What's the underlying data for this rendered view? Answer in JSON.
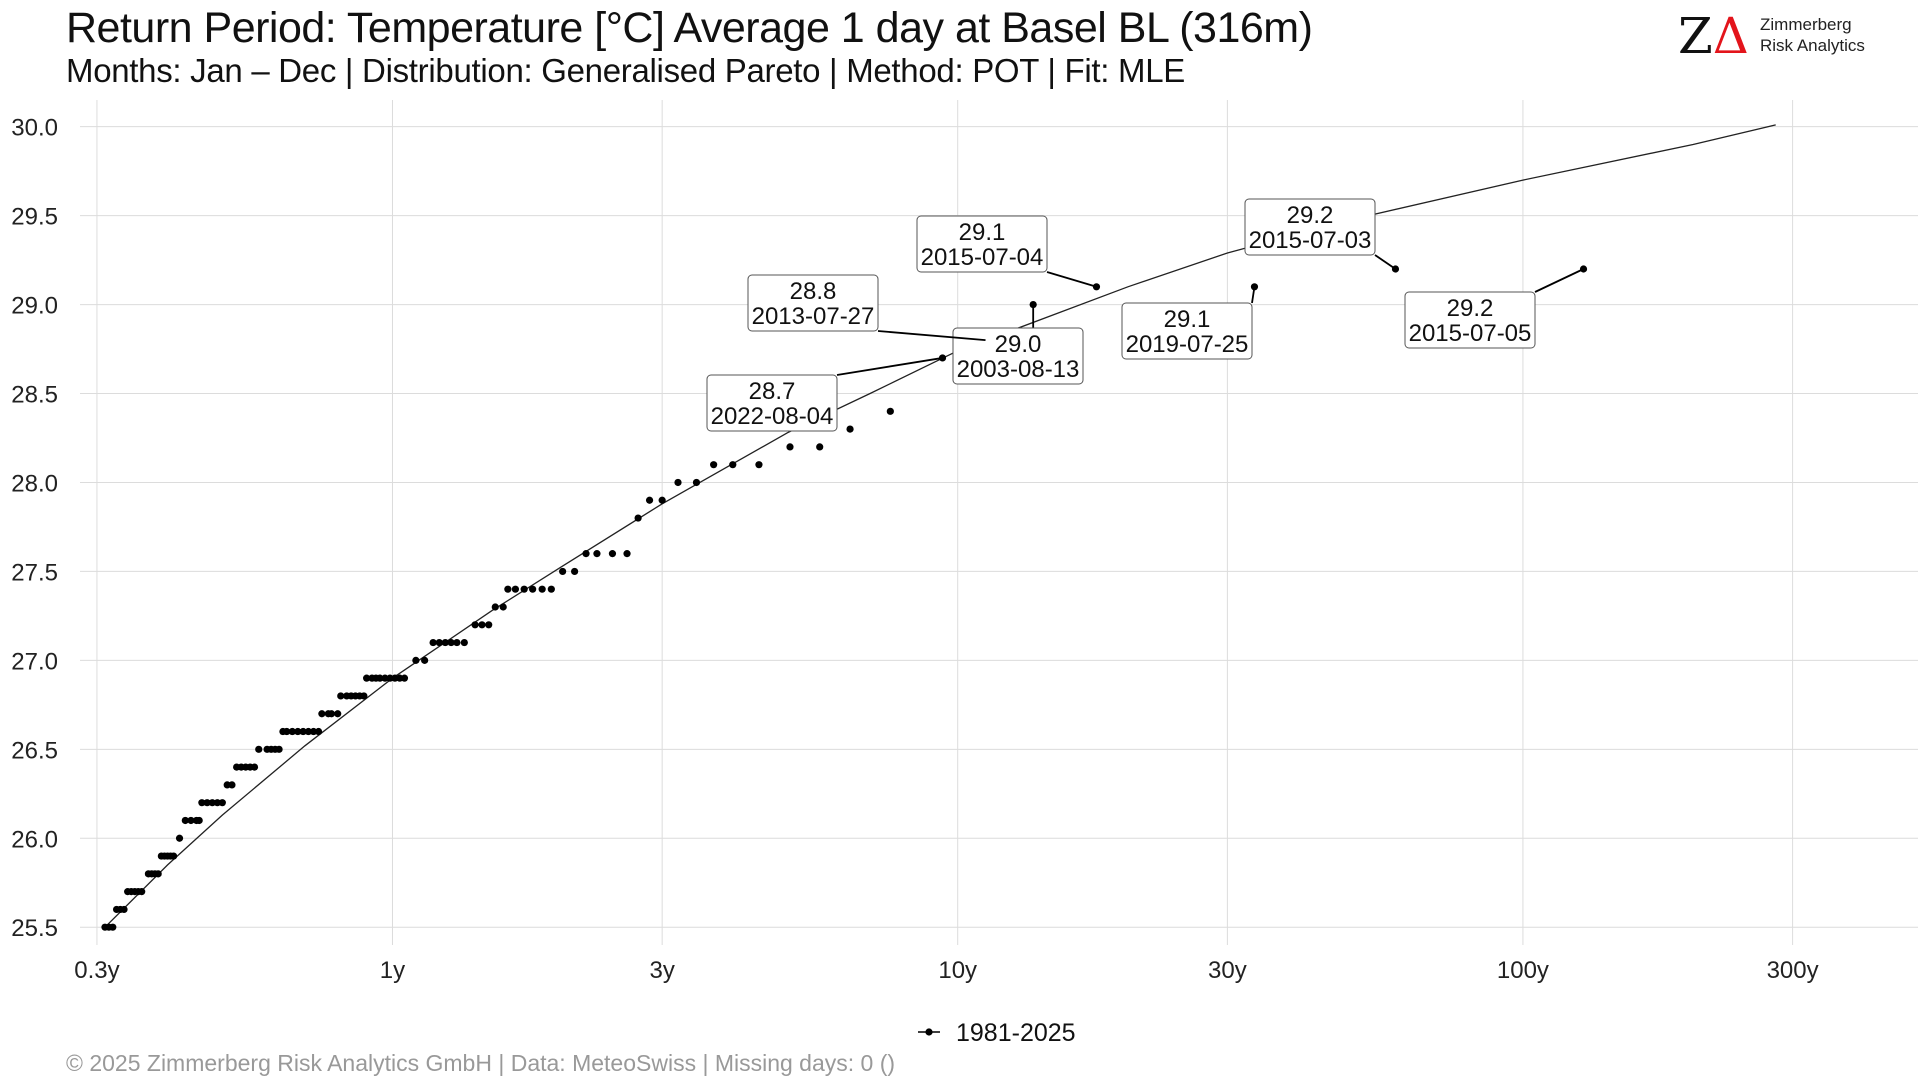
{
  "header": {
    "title": "Return Period: Temperature [°C] Average 1 day at Basel  BL (316m)",
    "subtitle": "Months: Jan – Dec | Distribution: Generalised Pareto | Method: POT | Fit: MLE"
  },
  "logo": {
    "mark_letter": "Z",
    "mark_delta": "Δ",
    "line1": "Zimmerberg",
    "line2": "Risk Analytics",
    "accent_color": "#e3141b"
  },
  "footer": {
    "text": "©  2025 Zimmerberg Risk Analytics GmbH | Data: MeteoSwiss | Missing days: 0 ()"
  },
  "chart_data": {
    "type": "scatter",
    "x_scale": "log",
    "x_unit": "return period (years)",
    "xlim": [
      0.28,
      500
    ],
    "ylim": [
      25.4,
      30.15
    ],
    "x_ticks": [
      {
        "value": 0.3,
        "label": "0.3y"
      },
      {
        "value": 1,
        "label": "1y"
      },
      {
        "value": 3,
        "label": "3y"
      },
      {
        "value": 10,
        "label": "10y"
      },
      {
        "value": 30,
        "label": "30y"
      },
      {
        "value": 100,
        "label": "100y"
      },
      {
        "value": 300,
        "label": "300y"
      }
    ],
    "y_ticks": [
      {
        "value": 25.5,
        "label": "25.5"
      },
      {
        "value": 26.0,
        "label": "26.0"
      },
      {
        "value": 26.5,
        "label": "26.5"
      },
      {
        "value": 27.0,
        "label": "27.0"
      },
      {
        "value": 27.5,
        "label": "27.5"
      },
      {
        "value": 28.0,
        "label": "28.0"
      },
      {
        "value": 28.5,
        "label": "28.5"
      },
      {
        "value": 29.0,
        "label": "29.0"
      },
      {
        "value": 29.5,
        "label": "29.5"
      },
      {
        "value": 30.0,
        "label": "30.0"
      }
    ],
    "grid": true,
    "legend": {
      "position": "bottom",
      "label": "1981-2025"
    },
    "series": [
      {
        "name": "1981-2025",
        "color": "#000000",
        "points": [
          {
            "x": 0.31,
            "y": 25.5
          },
          {
            "x": 0.315,
            "y": 25.5
          },
          {
            "x": 0.32,
            "y": 25.5
          },
          {
            "x": 0.325,
            "y": 25.6
          },
          {
            "x": 0.33,
            "y": 25.6
          },
          {
            "x": 0.335,
            "y": 25.6
          },
          {
            "x": 0.34,
            "y": 25.7
          },
          {
            "x": 0.345,
            "y": 25.7
          },
          {
            "x": 0.35,
            "y": 25.7
          },
          {
            "x": 0.355,
            "y": 25.7
          },
          {
            "x": 0.36,
            "y": 25.7
          },
          {
            "x": 0.37,
            "y": 25.8
          },
          {
            "x": 0.375,
            "y": 25.8
          },
          {
            "x": 0.38,
            "y": 25.8
          },
          {
            "x": 0.385,
            "y": 25.8
          },
          {
            "x": 0.39,
            "y": 25.9
          },
          {
            "x": 0.395,
            "y": 25.9
          },
          {
            "x": 0.4,
            "y": 25.9
          },
          {
            "x": 0.405,
            "y": 25.9
          },
          {
            "x": 0.41,
            "y": 25.9
          },
          {
            "x": 0.42,
            "y": 26.0
          },
          {
            "x": 0.43,
            "y": 26.1
          },
          {
            "x": 0.44,
            "y": 26.1
          },
          {
            "x": 0.45,
            "y": 26.1
          },
          {
            "x": 0.455,
            "y": 26.1
          },
          {
            "x": 0.46,
            "y": 26.2
          },
          {
            "x": 0.47,
            "y": 26.2
          },
          {
            "x": 0.48,
            "y": 26.2
          },
          {
            "x": 0.49,
            "y": 26.2
          },
          {
            "x": 0.5,
            "y": 26.2
          },
          {
            "x": 0.51,
            "y": 26.3
          },
          {
            "x": 0.52,
            "y": 26.3
          },
          {
            "x": 0.53,
            "y": 26.4
          },
          {
            "x": 0.54,
            "y": 26.4
          },
          {
            "x": 0.55,
            "y": 26.4
          },
          {
            "x": 0.56,
            "y": 26.4
          },
          {
            "x": 0.57,
            "y": 26.4
          },
          {
            "x": 0.58,
            "y": 26.5
          },
          {
            "x": 0.6,
            "y": 26.5
          },
          {
            "x": 0.61,
            "y": 26.5
          },
          {
            "x": 0.62,
            "y": 26.5
          },
          {
            "x": 0.63,
            "y": 26.5
          },
          {
            "x": 0.64,
            "y": 26.6
          },
          {
            "x": 0.65,
            "y": 26.6
          },
          {
            "x": 0.665,
            "y": 26.6
          },
          {
            "x": 0.68,
            "y": 26.6
          },
          {
            "x": 0.695,
            "y": 26.6
          },
          {
            "x": 0.71,
            "y": 26.6
          },
          {
            "x": 0.725,
            "y": 26.6
          },
          {
            "x": 0.74,
            "y": 26.6
          },
          {
            "x": 0.75,
            "y": 26.7
          },
          {
            "x": 0.77,
            "y": 26.7
          },
          {
            "x": 0.78,
            "y": 26.7
          },
          {
            "x": 0.8,
            "y": 26.7
          },
          {
            "x": 0.81,
            "y": 26.8
          },
          {
            "x": 0.83,
            "y": 26.8
          },
          {
            "x": 0.845,
            "y": 26.8
          },
          {
            "x": 0.86,
            "y": 26.8
          },
          {
            "x": 0.875,
            "y": 26.8
          },
          {
            "x": 0.89,
            "y": 26.8
          },
          {
            "x": 0.9,
            "y": 26.9
          },
          {
            "x": 0.92,
            "y": 26.9
          },
          {
            "x": 0.935,
            "y": 26.9
          },
          {
            "x": 0.95,
            "y": 26.9
          },
          {
            "x": 0.97,
            "y": 26.9
          },
          {
            "x": 0.99,
            "y": 26.9
          },
          {
            "x": 1.01,
            "y": 26.9
          },
          {
            "x": 1.03,
            "y": 26.9
          },
          {
            "x": 1.05,
            "y": 26.9
          },
          {
            "x": 1.1,
            "y": 27.0
          },
          {
            "x": 1.14,
            "y": 27.0
          },
          {
            "x": 1.18,
            "y": 27.1
          },
          {
            "x": 1.21,
            "y": 27.1
          },
          {
            "x": 1.24,
            "y": 27.1
          },
          {
            "x": 1.27,
            "y": 27.1
          },
          {
            "x": 1.3,
            "y": 27.1
          },
          {
            "x": 1.34,
            "y": 27.1
          },
          {
            "x": 1.4,
            "y": 27.2
          },
          {
            "x": 1.44,
            "y": 27.2
          },
          {
            "x": 1.48,
            "y": 27.2
          },
          {
            "x": 1.52,
            "y": 27.3
          },
          {
            "x": 1.57,
            "y": 27.3
          },
          {
            "x": 1.6,
            "y": 27.4
          },
          {
            "x": 1.65,
            "y": 27.4
          },
          {
            "x": 1.71,
            "y": 27.4
          },
          {
            "x": 1.77,
            "y": 27.4
          },
          {
            "x": 1.84,
            "y": 27.4
          },
          {
            "x": 1.91,
            "y": 27.4
          },
          {
            "x": 2.0,
            "y": 27.5
          },
          {
            "x": 2.1,
            "y": 27.5
          },
          {
            "x": 2.2,
            "y": 27.6
          },
          {
            "x": 2.3,
            "y": 27.6
          },
          {
            "x": 2.45,
            "y": 27.6
          },
          {
            "x": 2.6,
            "y": 27.6
          },
          {
            "x": 2.72,
            "y": 27.8
          },
          {
            "x": 2.85,
            "y": 27.9
          },
          {
            "x": 3.0,
            "y": 27.9
          },
          {
            "x": 3.2,
            "y": 28.0
          },
          {
            "x": 3.45,
            "y": 28.0
          },
          {
            "x": 3.7,
            "y": 28.1
          },
          {
            "x": 4.0,
            "y": 28.1
          },
          {
            "x": 4.45,
            "y": 28.1
          },
          {
            "x": 5.05,
            "y": 28.2
          },
          {
            "x": 5.7,
            "y": 28.2
          },
          {
            "x": 6.45,
            "y": 28.3
          },
          {
            "x": 7.6,
            "y": 28.4
          },
          {
            "x": 9.4,
            "y": 28.7
          },
          {
            "x": 11.2,
            "y": 28.8
          },
          {
            "x": 13.6,
            "y": 29.0
          },
          {
            "x": 17.6,
            "y": 29.1
          },
          {
            "x": 33.5,
            "y": 29.1
          },
          {
            "x": 59.5,
            "y": 29.2
          },
          {
            "x": 128,
            "y": 29.2
          }
        ]
      }
    ],
    "fit_curve": {
      "distribution": "Generalised Pareto",
      "x_range": [
        0.31,
        280
      ],
      "points": [
        {
          "x": 0.31,
          "y": 25.5
        },
        {
          "x": 0.4,
          "y": 25.85
        },
        {
          "x": 0.5,
          "y": 26.13
        },
        {
          "x": 0.7,
          "y": 26.52
        },
        {
          "x": 1.0,
          "y": 26.9
        },
        {
          "x": 1.5,
          "y": 27.28
        },
        {
          "x": 2.0,
          "y": 27.53
        },
        {
          "x": 3.0,
          "y": 27.88
        },
        {
          "x": 5.0,
          "y": 28.28
        },
        {
          "x": 7.0,
          "y": 28.5
        },
        {
          "x": 10.0,
          "y": 28.74
        },
        {
          "x": 20.0,
          "y": 29.1
        },
        {
          "x": 30.0,
          "y": 29.29
        },
        {
          "x": 50.0,
          "y": 29.48
        },
        {
          "x": 100.0,
          "y": 29.7
        },
        {
          "x": 200.0,
          "y": 29.9
        },
        {
          "x": 280.0,
          "y": 30.01
        }
      ]
    },
    "annotations": [
      {
        "value": "29.2",
        "date": "2015-07-05",
        "x": 128,
        "y": 29.2
      },
      {
        "value": "29.2",
        "date": "2015-07-03",
        "x": 59.5,
        "y": 29.2
      },
      {
        "value": "29.1",
        "date": "2019-07-25",
        "x": 33.5,
        "y": 29.1
      },
      {
        "value": "29.1",
        "date": "2015-07-04",
        "x": 17.6,
        "y": 29.1
      },
      {
        "value": "29.0",
        "date": "2003-08-13",
        "x": 13.6,
        "y": 29.0
      },
      {
        "value": "28.8",
        "date": "2013-07-27",
        "x": 11.2,
        "y": 28.8
      },
      {
        "value": "28.7",
        "date": "2022-08-04",
        "x": 9.4,
        "y": 28.7
      }
    ]
  }
}
